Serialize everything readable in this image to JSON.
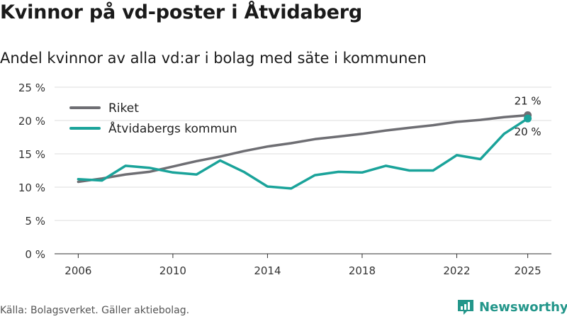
{
  "title": "Kvinnor på vd-poster i Åtvidaberg",
  "subtitle": "Andel kvinnor av alla vd:ar i bolag med säte i kommunen",
  "source": "Källa: Bolagsverket. Gäller aktiebolag.",
  "brand": "Newsworthy",
  "colors": {
    "riket": "#6e6e73",
    "kommun": "#1aa39a",
    "grid": "#dddddd",
    "brand": "#23968a"
  },
  "chart_data": {
    "type": "line",
    "x": [
      2006,
      2007,
      2008,
      2009,
      2010,
      2011,
      2012,
      2013,
      2014,
      2015,
      2016,
      2017,
      2018,
      2019,
      2020,
      2021,
      2022,
      2023,
      2024,
      2025
    ],
    "xticks": [
      2006,
      2010,
      2014,
      2018,
      2022,
      2025
    ],
    "ylim": [
      0,
      25
    ],
    "yticks": [
      0,
      5,
      10,
      15,
      20,
      25
    ],
    "ytick_labels": [
      "0 %",
      "5 %",
      "10 %",
      "15 %",
      "20 %",
      "25 %"
    ],
    "xlabel": "",
    "ylabel": "",
    "legend_position": "top-left",
    "series": [
      {
        "name": "Riket",
        "color_key": "riket",
        "values": [
          10.8,
          11.3,
          11.9,
          12.3,
          13.1,
          13.9,
          14.6,
          15.4,
          16.1,
          16.6,
          17.2,
          17.6,
          18.0,
          18.5,
          18.9,
          19.3,
          19.8,
          20.1,
          20.5,
          20.8
        ],
        "end_label": "21 %"
      },
      {
        "name": "Åtvidabergs kommun",
        "color_key": "kommun",
        "values": [
          11.2,
          11.0,
          13.2,
          12.9,
          12.2,
          11.9,
          14.0,
          12.3,
          10.1,
          9.8,
          11.8,
          12.3,
          12.2,
          13.2,
          12.5,
          12.5,
          14.8,
          14.2,
          18.0,
          20.3
        ],
        "end_label": "20 %"
      }
    ]
  }
}
